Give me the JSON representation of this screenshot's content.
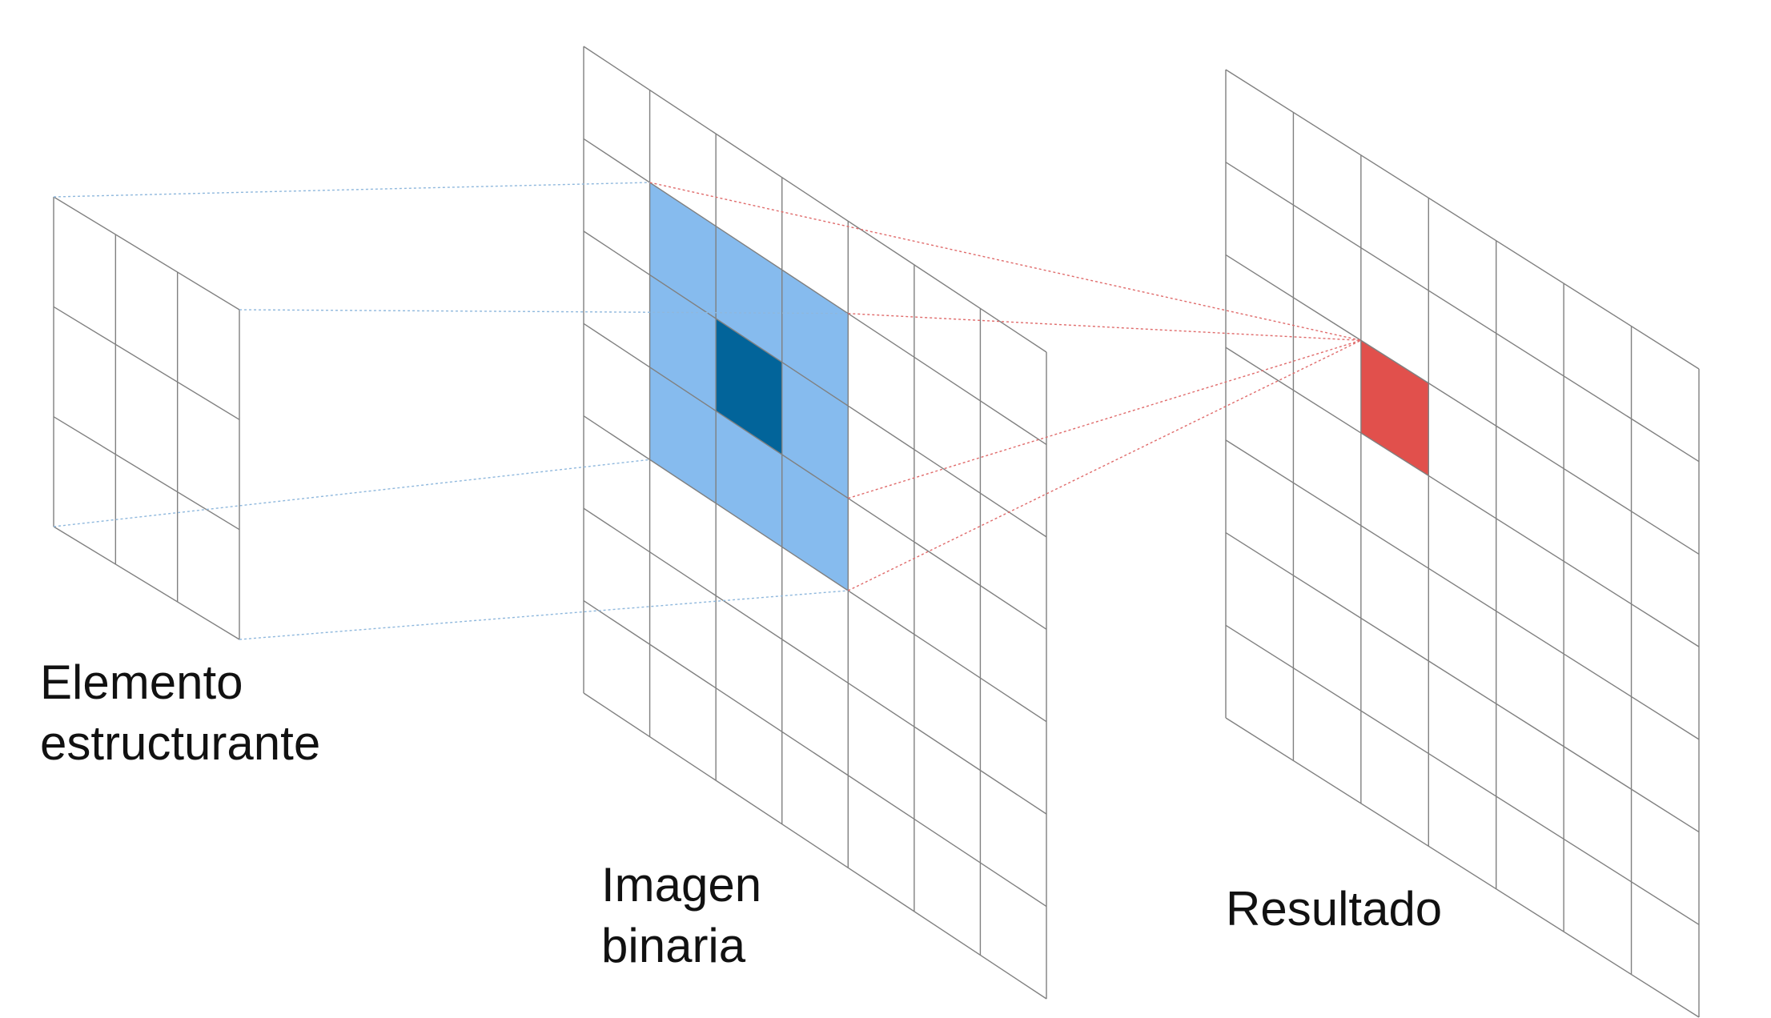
{
  "labels": {
    "structuring_element": [
      "Elemento",
      "estructurante"
    ],
    "binary_image": [
      "Imagen",
      "binaria"
    ],
    "result": [
      "Resultado"
    ]
  },
  "grids": {
    "structuring_element": {
      "cols": 3,
      "rows": 3
    },
    "binary_image": {
      "cols": 7,
      "rows": 7
    },
    "result": {
      "cols": 7,
      "rows": 7
    }
  },
  "highlights": {
    "window": {
      "col_from": 1,
      "col_to": 3,
      "row_from": 1,
      "row_to": 3
    },
    "center": {
      "col": 2,
      "row": 2
    },
    "result_cell": {
      "col": 2,
      "row": 2
    }
  },
  "colors": {
    "grid_line": "#808080",
    "window_fill": "#86bbee",
    "center_fill": "#02649a",
    "result_fill": "#e1504c",
    "blue_dotted": "#8fb8dd",
    "red_dotted": "#e06b6b",
    "text": "#111111"
  }
}
